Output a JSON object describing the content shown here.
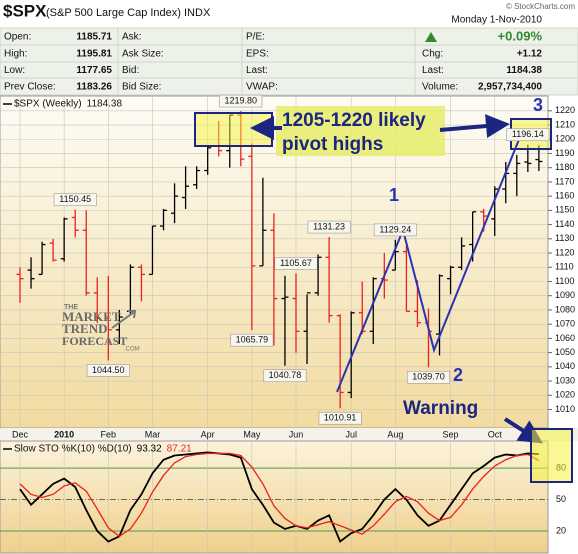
{
  "header": {
    "symbol": "$SPX",
    "name": "(S&P 500 Large Cap Index) INDX",
    "copyright": "© StockCharts.com",
    "date": "Monday 1-Nov-2010",
    "columns": [
      [
        {
          "label": "Open:",
          "value": "1185.71"
        },
        {
          "label": "High:",
          "value": "1195.81"
        },
        {
          "label": "Low:",
          "value": "1177.65"
        },
        {
          "label": "Prev Close:",
          "value": "1183.26"
        }
      ],
      [
        {
          "label": "Ask:"
        },
        {
          "label": "Ask Size:"
        },
        {
          "label": "Bid:"
        },
        {
          "label": "Bid Size:"
        }
      ],
      [
        {
          "label": "P/E:"
        },
        {
          "label": "EPS:"
        },
        {
          "label": "Last:"
        },
        {
          "label": "VWAP:"
        }
      ],
      [
        {
          "value": "+0.09%"
        },
        {
          "label": "Chg:",
          "value": "+1.12"
        },
        {
          "label": "Last:",
          "value": "1184.38"
        },
        {
          "label": "Volume:",
          "value": "2,957,734,400"
        }
      ]
    ]
  },
  "chart_data": [
    {
      "type": "ohlc",
      "legend_label": "$SPX (Weekly)",
      "last_value": 1184.38,
      "categories": [
        "Dec",
        null,
        null,
        null,
        "2010",
        null,
        null,
        null,
        "Feb",
        null,
        null,
        null,
        "Mar",
        null,
        null,
        null,
        null,
        "Apr",
        null,
        null,
        null,
        "May",
        null,
        null,
        null,
        "Jun",
        null,
        null,
        null,
        null,
        "Jul",
        null,
        null,
        null,
        "Aug",
        null,
        null,
        null,
        null,
        "Sep",
        null,
        null,
        null,
        "Oct",
        null,
        null,
        null,
        null
      ],
      "open": [
        1105,
        1108,
        1105,
        1127,
        1116,
        1145,
        1136,
        1092,
        1074,
        1066,
        1079,
        1110,
        1105,
        1139,
        1148,
        1159,
        1168,
        1178,
        1195,
        1192,
        1217,
        1188,
        1111,
        1136,
        1088,
        1088,
        1065,
        1092,
        1117,
        1076,
        1022,
        1078,
        1065,
        1102,
        1108,
        1121,
        1079,
        1071,
        1063,
        1102,
        1110,
        1126,
        1149,
        1144,
        1165,
        1176,
        1184,
        1185.71
      ],
      "high": [
        1110,
        1117,
        1128,
        1130,
        1145,
        1150.45,
        1150,
        1103,
        1104,
        1080,
        1112,
        1112,
        1139,
        1151,
        1169,
        1181,
        1181,
        1195,
        1213,
        1217,
        1219.8,
        1197,
        1173,
        1148,
        1104,
        1105.67,
        1091,
        1119,
        1131.23,
        1077,
        1079,
        1100,
        1103,
        1120,
        1129.24,
        1125,
        1101,
        1081,
        1105,
        1111,
        1131,
        1149,
        1151,
        1167,
        1184,
        1189,
        1196.14,
        1195.81
      ],
      "low": [
        1085,
        1095,
        1105,
        1114,
        1114,
        1131,
        1090,
        1071,
        1044.5,
        1056,
        1076,
        1086,
        1105,
        1136,
        1141,
        1151,
        1165,
        1175,
        1188,
        1180,
        1181,
        1065.79,
        1111,
        1055,
        1040.78,
        1050,
        1042,
        1090,
        1071,
        1010.91,
        1018,
        1063,
        1056,
        1088,
        1108,
        1079,
        1068,
        1039.7,
        1048,
        1091,
        1108,
        1114,
        1135,
        1132,
        1155,
        1160,
        1177,
        1177.65
      ],
      "close": [
        1102,
        1102,
        1126,
        1115,
        1144,
        1136,
        1092,
        1074,
        1066,
        1075,
        1110,
        1105,
        1139,
        1150,
        1160,
        1167,
        1178,
        1194,
        1192,
        1217,
        1186,
        1111,
        1136,
        1088,
        1089,
        1065,
        1092,
        1117,
        1076,
        1022,
        1078,
        1065,
        1102,
        1101,
        1121,
        1079,
        1071,
        1065,
        1104,
        1110,
        1125,
        1149,
        1146,
        1165,
        1176,
        1183,
        1183,
        1184.38
      ],
      "high_labels": [
        null,
        null,
        null,
        null,
        null,
        "1150.45",
        null,
        null,
        null,
        null,
        null,
        null,
        null,
        null,
        null,
        null,
        null,
        null,
        null,
        null,
        "1219.80",
        null,
        null,
        null,
        null,
        "1105.67",
        null,
        null,
        "1131.23",
        null,
        null,
        null,
        null,
        null,
        "1129.24",
        null,
        null,
        null,
        null,
        null,
        null,
        null,
        null,
        null,
        null,
        null,
        "1196.14",
        null
      ],
      "low_labels": [
        null,
        null,
        null,
        null,
        null,
        null,
        null,
        null,
        "1044.50",
        null,
        null,
        null,
        null,
        null,
        null,
        null,
        null,
        null,
        null,
        null,
        null,
        "1065.79",
        null,
        null,
        "1040.78",
        null,
        null,
        null,
        null,
        "1010.91",
        null,
        null,
        null,
        null,
        null,
        null,
        null,
        "1039.70",
        null,
        null,
        null,
        null,
        null,
        null,
        null,
        null,
        null,
        null
      ],
      "up_color": "#000000",
      "down_color": "#e8231f",
      "ylim": [
        997,
        1229
      ],
      "yticks": [
        1010,
        1020,
        1030,
        1040,
        1050,
        1060,
        1070,
        1080,
        1090,
        1100,
        1110,
        1120,
        1130,
        1140,
        1150,
        1160,
        1170,
        1180,
        1190,
        1200,
        1210,
        1220
      ],
      "grid": true
    },
    {
      "type": "line",
      "legend_label": "Slow STO %K(10) %D(10)",
      "series": [
        {
          "color": "#000000",
          "values": [
            60,
            45,
            55,
            65,
            70,
            62,
            40,
            20,
            10,
            15,
            40,
            55,
            75,
            88,
            92,
            93,
            94,
            95,
            94,
            93,
            90,
            60,
            45,
            28,
            22,
            25,
            22,
            30,
            35,
            10,
            18,
            22,
            35,
            50,
            60,
            50,
            35,
            25,
            30,
            45,
            60,
            75,
            82,
            90,
            93,
            92,
            94,
            93.32
          ]
        },
        {
          "color": "#e8231f",
          "values": [
            65,
            55,
            52,
            55,
            63,
            66,
            58,
            41,
            23,
            15,
            22,
            37,
            57,
            73,
            85,
            91,
            93,
            94,
            94,
            94,
            92,
            81,
            65,
            44,
            32,
            25,
            23,
            26,
            29,
            25,
            21,
            17,
            25,
            36,
            48,
            53,
            48,
            37,
            30,
            33,
            45,
            60,
            72,
            82,
            88,
            92,
            93,
            87.21
          ]
        }
      ],
      "ylim": [
        0,
        103
      ],
      "yticks": [
        20,
        50,
        80
      ],
      "grid": true
    }
  ],
  "annotations": {
    "pivot_note": [
      "1205-1220 likely",
      "pivot highs"
    ],
    "wave_1": "1",
    "wave_2": "2",
    "wave_3": "3",
    "warning": "Warning"
  },
  "watermark": [
    "THE",
    "MARKET",
    "TREND",
    "FORECAST",
    ".COM"
  ]
}
